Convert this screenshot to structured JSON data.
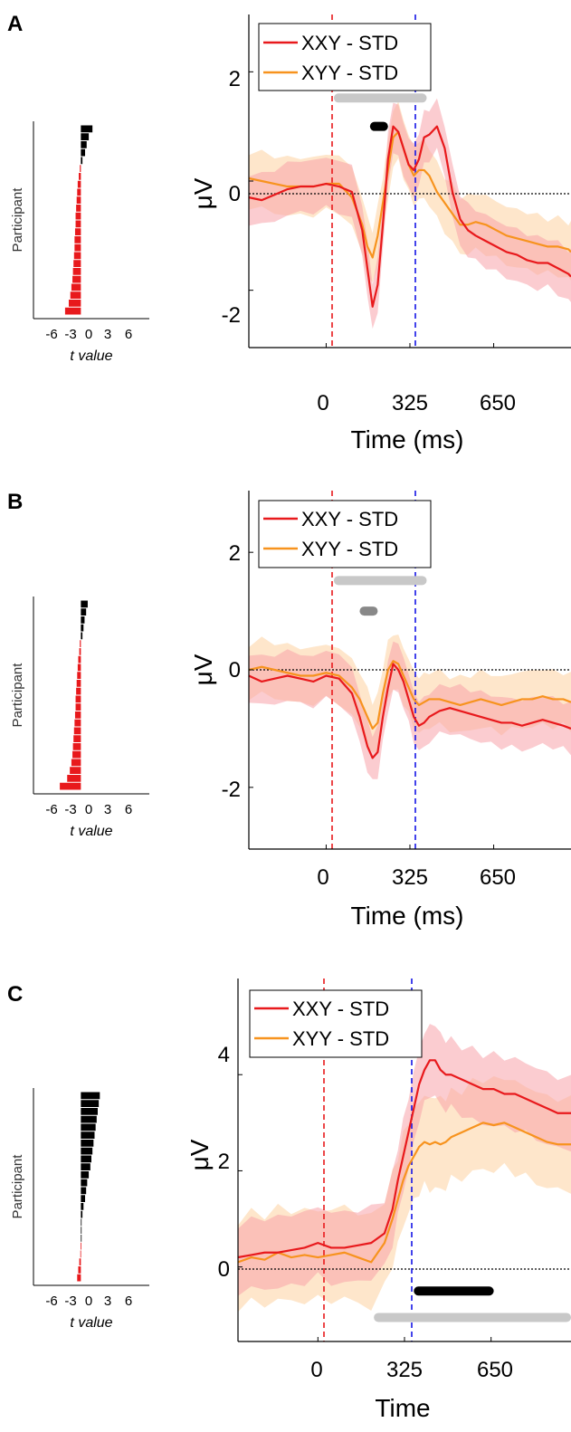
{
  "panel_labels": [
    "A",
    "B",
    "C"
  ],
  "colors": {
    "xxy": "#e8191c",
    "xyy": "#f7931e",
    "xxy_band": "#f7a3aa",
    "xyy_band": "#fdd5a8",
    "onset_line": "#e8191c",
    "offset_line": "#1414e6",
    "positive_bar": "#000000",
    "negative_bar": "#e8191c",
    "sig_gray": "#c8c8c8"
  },
  "chart_data": [
    {
      "panel": "A",
      "inset": {
        "type": "bar",
        "ylabel": "Participant",
        "xlabel": "t value",
        "xticks": [
          "-6",
          "-3",
          "0",
          "3",
          "6"
        ],
        "xlim": [
          -9,
          13
        ],
        "t_values": [
          2.2,
          1.5,
          1.1,
          0.8,
          0.3,
          -0.2,
          -0.4,
          -0.6,
          -0.7,
          -0.8,
          -0.9,
          -1.0,
          -1.0,
          -1.1,
          -1.2,
          -1.2,
          -1.3,
          -1.4,
          -1.5,
          -1.6,
          -1.8,
          -2.0,
          -2.3,
          -3.0
        ]
      },
      "main": {
        "type": "line",
        "ylabel": "μV",
        "xlabel": "Time (ms)",
        "xticks": [
          "0",
          "325",
          "650"
        ],
        "ytick_labels": [
          "-2",
          "0",
          "2"
        ],
        "yticks": [
          -2,
          0,
          2
        ],
        "xlim": [
          -300,
          950
        ],
        "ylim": [
          -3.05,
          3.05
        ],
        "onset_ms": 30,
        "offset_ms": 370,
        "legend": [
          "XXY - STD",
          "XYY - STD"
        ],
        "legend_position": "top-left",
        "sig_bars": [
          {
            "color": "gray",
            "start": 30,
            "end": 390,
            "y": 1.52
          },
          {
            "color": "black",
            "start": 170,
            "end": 240,
            "y": 1.0
          }
        ],
        "series": [
          {
            "name": "XXY - STD",
            "x": [
              -300,
              -250,
              -200,
              -150,
              -100,
              -50,
              0,
              50,
              100,
              140,
              160,
              180,
              200,
              220,
              240,
              260,
              280,
              300,
              320,
              340,
              360,
              380,
              400,
              430,
              460,
              490,
              520,
              550,
              580,
              620,
              660,
              700,
              740,
              780,
              820,
              860,
              900,
              940,
              950
            ],
            "y": [
              -0.3,
              -0.35,
              -0.25,
              -0.15,
              -0.1,
              -0.1,
              -0.05,
              -0.1,
              -0.2,
              -0.9,
              -1.6,
              -2.3,
              -1.9,
              -0.8,
              0.4,
              1.0,
              0.9,
              0.6,
              0.3,
              0.2,
              0.4,
              0.8,
              0.85,
              1.0,
              0.6,
              -0.2,
              -0.7,
              -0.9,
              -1.0,
              -1.1,
              -1.2,
              -1.3,
              -1.35,
              -1.45,
              -1.5,
              -1.5,
              -1.6,
              -1.7,
              -1.75
            ],
            "band": 0.45
          },
          {
            "name": "XYY - STD",
            "x": [
              -300,
              -250,
              -200,
              -150,
              -100,
              -50,
              0,
              50,
              100,
              140,
              160,
              180,
              200,
              220,
              240,
              260,
              280,
              300,
              320,
              340,
              360,
              380,
              400,
              430,
              460,
              490,
              520,
              550,
              580,
              620,
              660,
              700,
              740,
              780,
              820,
              860,
              900,
              940,
              950
            ],
            "y": [
              0.05,
              0.0,
              -0.05,
              -0.1,
              -0.1,
              -0.1,
              -0.05,
              -0.05,
              -0.3,
              -0.8,
              -1.2,
              -1.4,
              -1.0,
              -0.4,
              0.2,
              0.8,
              0.9,
              0.6,
              0.3,
              0.1,
              0.2,
              0.2,
              0.1,
              -0.2,
              -0.4,
              -0.6,
              -0.8,
              -0.8,
              -0.75,
              -0.8,
              -0.9,
              -1.0,
              -1.05,
              -1.1,
              -1.15,
              -1.2,
              -1.2,
              -1.25,
              -1.3
            ],
            "band": 0.5
          }
        ]
      }
    },
    {
      "panel": "B",
      "inset": {
        "type": "bar",
        "ylabel": "Participant",
        "xlabel": "t value",
        "xticks": [
          "-6",
          "-3",
          "0",
          "3",
          "6"
        ],
        "xlim": [
          -9,
          13
        ],
        "t_values": [
          1.3,
          1.0,
          0.7,
          0.5,
          0.3,
          -0.2,
          -0.3,
          -0.5,
          -0.6,
          -0.7,
          -0.8,
          -0.9,
          -1.0,
          -1.0,
          -1.1,
          -1.2,
          -1.3,
          -1.4,
          -1.5,
          -1.6,
          -1.8,
          -2.1,
          -2.6,
          -4.0
        ]
      },
      "main": {
        "type": "line",
        "ylabel": "μV",
        "xlabel": "Time (ms)",
        "xticks": [
          "0",
          "325",
          "650"
        ],
        "ytick_labels": [
          "-2",
          "0",
          "2"
        ],
        "yticks": [
          -2,
          0,
          2
        ],
        "xlim": [
          -300,
          950
        ],
        "ylim": [
          -3.05,
          3.05
        ],
        "onset_ms": 30,
        "offset_ms": 370,
        "legend": [
          "XXY - STD",
          "XYY - STD"
        ],
        "legend_position": "top-left",
        "sig_bars": [
          {
            "color": "gray",
            "start": 30,
            "end": 390,
            "y": 1.52
          },
          {
            "color": "darkgray",
            "start": 130,
            "end": 200,
            "y": 1.0
          }
        ],
        "series": [
          {
            "name": "XXY - STD",
            "x": [
              -300,
              -250,
              -200,
              -150,
              -100,
              -50,
              0,
              50,
              100,
              130,
              160,
              180,
              200,
              220,
              240,
              260,
              280,
              300,
              320,
              340,
              360,
              380,
              400,
              440,
              480,
              520,
              560,
              600,
              640,
              680,
              720,
              760,
              800,
              840,
              880,
              920,
              950
            ],
            "y": [
              -0.1,
              -0.2,
              -0.15,
              -0.1,
              -0.15,
              -0.2,
              -0.1,
              -0.15,
              -0.4,
              -0.8,
              -1.3,
              -1.5,
              -1.4,
              -0.8,
              -0.3,
              0.1,
              0.0,
              -0.2,
              -0.5,
              -0.8,
              -0.95,
              -0.9,
              -0.8,
              -0.7,
              -0.65,
              -0.7,
              -0.75,
              -0.8,
              -0.85,
              -0.9,
              -0.9,
              -0.95,
              -0.9,
              -0.85,
              -0.9,
              -0.95,
              -1.0
            ],
            "band": 0.4
          },
          {
            "name": "XYY - STD",
            "x": [
              -300,
              -250,
              -200,
              -150,
              -100,
              -50,
              0,
              50,
              100,
              130,
              160,
              180,
              200,
              220,
              240,
              260,
              280,
              300,
              320,
              340,
              360,
              380,
              400,
              440,
              480,
              520,
              560,
              600,
              640,
              680,
              720,
              760,
              800,
              840,
              880,
              920,
              950
            ],
            "y": [
              0.0,
              0.05,
              0.0,
              -0.05,
              -0.1,
              -0.1,
              -0.05,
              -0.1,
              -0.3,
              -0.5,
              -0.8,
              -1.0,
              -0.9,
              -0.4,
              0.0,
              0.15,
              0.1,
              -0.1,
              -0.3,
              -0.5,
              -0.6,
              -0.55,
              -0.5,
              -0.5,
              -0.55,
              -0.6,
              -0.55,
              -0.5,
              -0.55,
              -0.6,
              -0.55,
              -0.5,
              -0.5,
              -0.45,
              -0.5,
              -0.5,
              -0.55
            ],
            "band": 0.45
          }
        ]
      }
    },
    {
      "panel": "C",
      "inset": {
        "type": "bar",
        "ylabel": "Participant",
        "xlabel": "t value",
        "xticks": [
          "-6",
          "-3",
          "0",
          "3",
          "6"
        ],
        "xlim": [
          -9,
          13
        ],
        "t_values": [
          3.6,
          3.4,
          3.2,
          3.0,
          2.8,
          2.6,
          2.4,
          2.2,
          2.0,
          1.8,
          1.5,
          1.2,
          1.0,
          0.8,
          0.5,
          0.3,
          0.1,
          0.05,
          0.02,
          -0.05,
          -0.1,
          -0.3,
          -0.5,
          -0.7
        ]
      },
      "main": {
        "type": "line",
        "ylabel": "μV",
        "xlabel": "Time",
        "xticks": [
          "0",
          "325",
          "650"
        ],
        "ytick_labels": [
          "0",
          "2",
          "4"
        ],
        "yticks": [
          0,
          2,
          4
        ],
        "xlim": [
          -300,
          950
        ],
        "ylim": [
          -1.55,
          6.0
        ],
        "onset_ms": 0,
        "offset_ms": 345,
        "legend": [
          "XXY - STD",
          "XYY - STD"
        ],
        "legend_position": "top-left",
        "sig_bars": [
          {
            "color": "black",
            "start": 360,
            "end": 660,
            "y": -0.5
          },
          {
            "color": "gray",
            "start": 210,
            "end": 950,
            "y": -1.05
          }
        ],
        "series": [
          {
            "name": "XXY - STD",
            "x": [
              -300,
              -250,
              -200,
              -150,
              -100,
              -50,
              0,
              50,
              100,
              150,
              200,
              250,
              280,
              300,
              320,
              340,
              360,
              380,
              400,
              420,
              440,
              460,
              480,
              500,
              540,
              580,
              620,
              660,
              700,
              740,
              780,
              820,
              860,
              900,
              950
            ],
            "y": [
              0.2,
              0.25,
              0.3,
              0.3,
              0.35,
              0.4,
              0.5,
              0.4,
              0.4,
              0.45,
              0.5,
              0.7,
              1.2,
              1.8,
              2.3,
              2.8,
              3.3,
              3.8,
              4.1,
              4.3,
              4.3,
              4.1,
              4.0,
              4.0,
              3.9,
              3.8,
              3.7,
              3.7,
              3.6,
              3.6,
              3.5,
              3.4,
              3.3,
              3.2,
              3.2
            ],
            "band": 0.7
          },
          {
            "name": "XYY - STD",
            "x": [
              -300,
              -250,
              -200,
              -150,
              -100,
              -50,
              0,
              50,
              100,
              150,
              200,
              250,
              280,
              300,
              320,
              340,
              360,
              380,
              400,
              420,
              440,
              460,
              480,
              500,
              540,
              580,
              620,
              660,
              700,
              740,
              780,
              820,
              860,
              900,
              950
            ],
            "y": [
              0.1,
              0.2,
              0.15,
              0.3,
              0.2,
              0.25,
              0.2,
              0.25,
              0.3,
              0.2,
              0.1,
              0.5,
              1.0,
              1.4,
              1.8,
              2.1,
              2.3,
              2.5,
              2.6,
              2.55,
              2.6,
              2.55,
              2.6,
              2.7,
              2.8,
              2.9,
              3.0,
              2.95,
              3.0,
              2.9,
              2.8,
              2.7,
              2.6,
              2.55,
              2.55
            ],
            "band": 0.9
          }
        ]
      }
    }
  ]
}
